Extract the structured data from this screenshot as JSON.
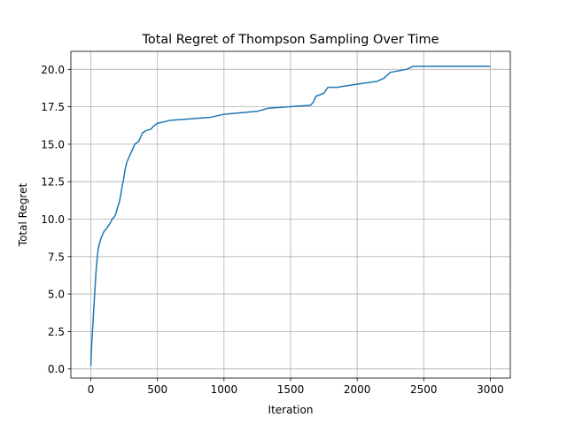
{
  "chart_data": {
    "type": "line",
    "title": "Total Regret of Thompson Sampling Over Time",
    "xlabel": "Iteration",
    "ylabel": "Total Regret",
    "xlim": [
      -150,
      3150
    ],
    "ylim": [
      -0.61,
      21.2
    ],
    "x_ticks": [
      0,
      500,
      1000,
      1500,
      2000,
      2500,
      3000
    ],
    "y_ticks": [
      0.0,
      2.5,
      5.0,
      7.5,
      10.0,
      12.5,
      15.0,
      17.5,
      20.0
    ],
    "x_tick_labels": [
      "0",
      "500",
      "1000",
      "1500",
      "2000",
      "2500",
      "3000"
    ],
    "y_tick_labels": [
      "0.0",
      "2.5",
      "5.0",
      "7.5",
      "10.0",
      "12.5",
      "15.0",
      "17.5",
      "20.0"
    ],
    "grid": true,
    "line_color": "#1f77b4",
    "series": [
      {
        "x": [
          0,
          3,
          6,
          10,
          14,
          18,
          22,
          26,
          30,
          34,
          38,
          42,
          46,
          50,
          55,
          60,
          66,
          72,
          80,
          90,
          100,
          120,
          150,
          160,
          180,
          190,
          200,
          210,
          220,
          228,
          235,
          245,
          255,
          270,
          290,
          310,
          330,
          360,
          370,
          380,
          390,
          400,
          410,
          450,
          470,
          500,
          600,
          900,
          1000,
          1250,
          1330,
          1650,
          1670,
          1690,
          1750,
          1780,
          1850,
          1990,
          2150,
          2200,
          2250,
          2370,
          2420,
          2770,
          3000
        ],
        "values": [
          0.2,
          1.0,
          1.6,
          2.2,
          2.8,
          3.4,
          4.0,
          4.6,
          5.2,
          5.8,
          6.4,
          6.8,
          7.2,
          7.6,
          8.0,
          8.2,
          8.4,
          8.6,
          8.8,
          9.0,
          9.2,
          9.4,
          9.8,
          10.0,
          10.2,
          10.4,
          10.8,
          11.0,
          11.4,
          11.8,
          12.2,
          12.6,
          13.2,
          13.8,
          14.2,
          14.6,
          15.0,
          15.2,
          15.4,
          15.6,
          15.8,
          15.8,
          15.9,
          16.0,
          16.2,
          16.4,
          16.6,
          16.8,
          17.0,
          17.2,
          17.4,
          17.6,
          17.8,
          18.2,
          18.4,
          18.8,
          18.8,
          19.0,
          19.2,
          19.4,
          19.8,
          20.0,
          20.2,
          20.2,
          20.2
        ]
      }
    ]
  }
}
